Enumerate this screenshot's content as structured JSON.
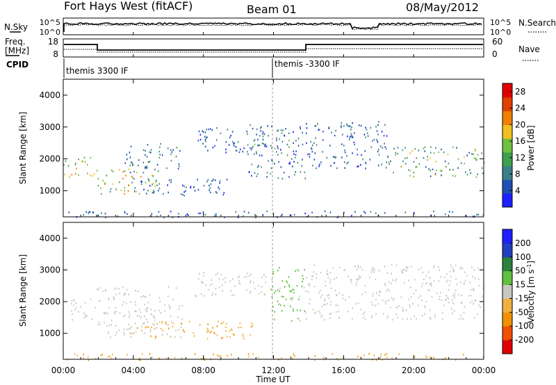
{
  "header": {
    "station": "Fort Hays West (fitACF)",
    "beam": "Beam 01",
    "date": "08/May/2012"
  },
  "top_panel": {
    "left_label": "N.Sky",
    "right_label": "N.Search",
    "left_ticks": [
      "10^5",
      "10^0"
    ],
    "right_ticks": [
      "10^5",
      "10^0"
    ]
  },
  "freq_panel": {
    "left_label_line1": "Freq.",
    "left_label_line2": "[MHz]",
    "right_label": "Nave",
    "left_ticks": [
      "18",
      "8"
    ],
    "right_ticks": [
      "60",
      "0"
    ]
  },
  "cpid": {
    "label": "CPID",
    "entries": [
      "themis 3300 IF",
      "themis -3300 IF"
    ]
  },
  "colors": {
    "power_scale": [
      "#1f1fff",
      "#1f4fb4",
      "#3a7f8a",
      "#3fa04f",
      "#70c040",
      "#f0c020",
      "#f08000",
      "#e04000",
      "#e00000"
    ],
    "velocity_scale": [
      "#e00000",
      "#f05000",
      "#f09000",
      "#f0b040",
      "#c8c8c0",
      "#60c040",
      "#2c8040",
      "#2040c0",
      "#1f1fff"
    ]
  },
  "chart_data": [
    {
      "type": "heatmap",
      "title": "Fort Hays West (fitACF) Beam 01 08/May/2012",
      "xlabel": "",
      "ylabel": "Slant Range [km]",
      "colorbar_label": "Power [dB]",
      "x_ticks": [
        "00:00",
        "04:00",
        "08:00",
        "12:00",
        "16:00",
        "20:00",
        "00:00"
      ],
      "y_ticks": [
        1000,
        2000,
        3000,
        4000
      ],
      "ylim": [
        180,
        4500
      ],
      "xlim_hours": [
        0,
        24
      ],
      "colorbar_ticks": [
        4,
        8,
        12,
        16,
        20,
        24,
        28
      ],
      "colorbar_range": [
        0,
        30
      ],
      "echo_bands": [
        {
          "t0": 0,
          "t1": 1.9,
          "r0": 1450,
          "r1": 2100,
          "v0": 12,
          "v1": 22
        },
        {
          "t0": 1.9,
          "t1": 5.5,
          "r0": 900,
          "r1": 1700,
          "v0": 8,
          "v1": 22
        },
        {
          "t0": 3.5,
          "t1": 6.8,
          "r0": 1600,
          "r1": 2500,
          "v0": 4,
          "v1": 12
        },
        {
          "t0": 3.8,
          "t1": 9.5,
          "r0": 850,
          "r1": 1400,
          "v0": 2,
          "v1": 10
        },
        {
          "t0": 7.5,
          "t1": 11.8,
          "r0": 2200,
          "r1": 3000,
          "v0": 2,
          "v1": 10
        },
        {
          "t0": 10.5,
          "t1": 13.8,
          "r0": 1400,
          "r1": 3100,
          "v0": 2,
          "v1": 14
        },
        {
          "t0": 13.8,
          "t1": 18.5,
          "r0": 1700,
          "r1": 3200,
          "v0": 2,
          "v1": 10
        },
        {
          "t0": 18.5,
          "t1": 24,
          "r0": 1450,
          "r1": 2400,
          "v0": 4,
          "v1": 18
        },
        {
          "t0": 0,
          "t1": 24,
          "r0": 180,
          "r1": 380,
          "v0": 2,
          "v1": 10
        }
      ]
    },
    {
      "type": "heatmap",
      "xlabel": "Time UT",
      "ylabel": "Slant Range [km]",
      "colorbar_label": "Velocity [m s^-1]",
      "x_ticks": [
        "00:00",
        "04:00",
        "08:00",
        "12:00",
        "16:00",
        "20:00",
        "00:00"
      ],
      "y_ticks": [
        1000,
        2000,
        3000,
        4000
      ],
      "ylim": [
        180,
        4500
      ],
      "xlim_hours": [
        0,
        24
      ],
      "colorbar_ticks": [
        -200,
        -100,
        -50,
        -15,
        15,
        50,
        100,
        200
      ],
      "colorbar_range": [
        -250,
        250
      ],
      "echo_bands": [
        {
          "t0": 0,
          "t1": 1.9,
          "r0": 1450,
          "r1": 2100,
          "v0": -15,
          "v1": 15
        },
        {
          "t0": 1.9,
          "t1": 6.8,
          "r0": 900,
          "r1": 2500,
          "v0": -15,
          "v1": 15
        },
        {
          "t0": 3.8,
          "t1": 10.8,
          "r0": 850,
          "r1": 1400,
          "v0": -100,
          "v1": -40
        },
        {
          "t0": 7.5,
          "t1": 11.8,
          "r0": 2200,
          "r1": 3000,
          "v0": -15,
          "v1": 15
        },
        {
          "t0": 11.8,
          "t1": 13.8,
          "r0": 1400,
          "r1": 3100,
          "v0": 20,
          "v1": 80
        },
        {
          "t0": 13.8,
          "t1": 24,
          "r0": 1450,
          "r1": 3200,
          "v0": -15,
          "v1": 15
        },
        {
          "t0": 0,
          "t1": 24,
          "r0": 180,
          "r1": 380,
          "v0": -120,
          "v1": -40
        }
      ]
    }
  ]
}
